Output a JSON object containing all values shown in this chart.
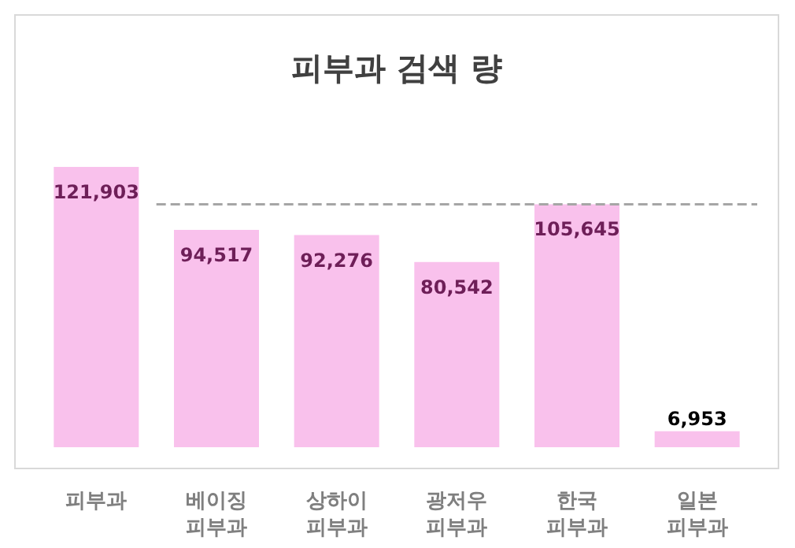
{
  "chart_data": {
    "type": "bar",
    "title": "피부과 검색 량",
    "categories": [
      "피부과",
      "베이징 피부과",
      "상하이 피부과",
      "광저우 피부과",
      "한국 피부과",
      "일본 피부과"
    ],
    "values": [
      121903,
      94517,
      92276,
      80542,
      105645,
      6953
    ],
    "value_labels": [
      "121,903",
      "94,517",
      "92,276",
      "80,542",
      "105,645",
      "6,953"
    ],
    "color": "#f9c1ec",
    "ref_lines": [
      {
        "axis": "y",
        "value": 105645,
        "line_style": "dashed",
        "color": "#a6a6a6"
      }
    ]
  }
}
